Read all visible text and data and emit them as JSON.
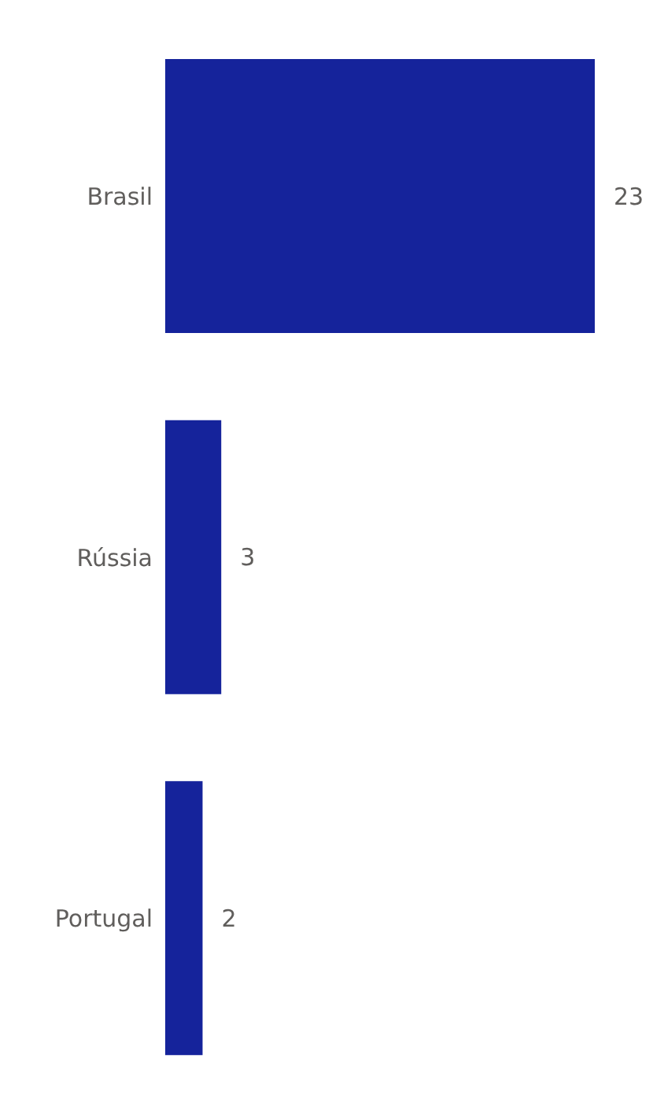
{
  "chart_data": {
    "type": "bar",
    "orientation": "horizontal",
    "categories": [
      "Brasil",
      "Rússia",
      "Portugal"
    ],
    "values": [
      23,
      3,
      2
    ],
    "color": "#15239b",
    "data_labels": true
  }
}
